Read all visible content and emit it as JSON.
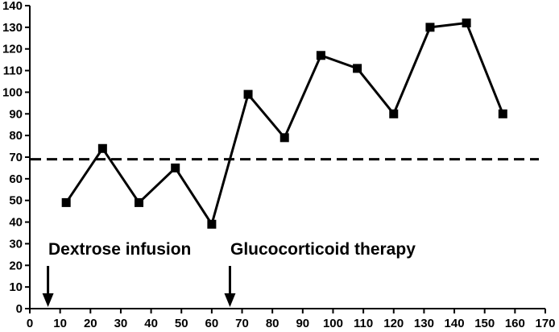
{
  "chart_data": {
    "type": "line",
    "title": "",
    "xlabel": "",
    "ylabel": "",
    "xlim": [
      0,
      170
    ],
    "ylim": [
      0,
      140
    ],
    "x_ticks": [
      0,
      10,
      20,
      30,
      40,
      50,
      60,
      70,
      80,
      90,
      100,
      110,
      120,
      130,
      140,
      150,
      160,
      170
    ],
    "y_ticks": [
      0,
      10,
      20,
      30,
      40,
      50,
      60,
      70,
      80,
      90,
      100,
      110,
      120,
      130,
      140
    ],
    "grid": false,
    "legend": "none",
    "series": [
      {
        "x": [
          12,
          24,
          36,
          48,
          60,
          72,
          84,
          96,
          108,
          120,
          132,
          144,
          156
        ],
        "y": [
          49,
          74,
          49,
          65,
          39,
          99,
          79,
          117,
          111,
          90,
          130,
          132,
          90
        ],
        "marker": "square",
        "color": "#000000"
      }
    ],
    "reference_line": {
      "y": 69,
      "style": "dashed",
      "color": "#000000"
    },
    "annotations": [
      {
        "text": "Dextrose infusion",
        "x": 6,
        "arrow": "down"
      },
      {
        "text": "Glucocorticoid therapy",
        "x": 66,
        "arrow": "down"
      }
    ]
  }
}
